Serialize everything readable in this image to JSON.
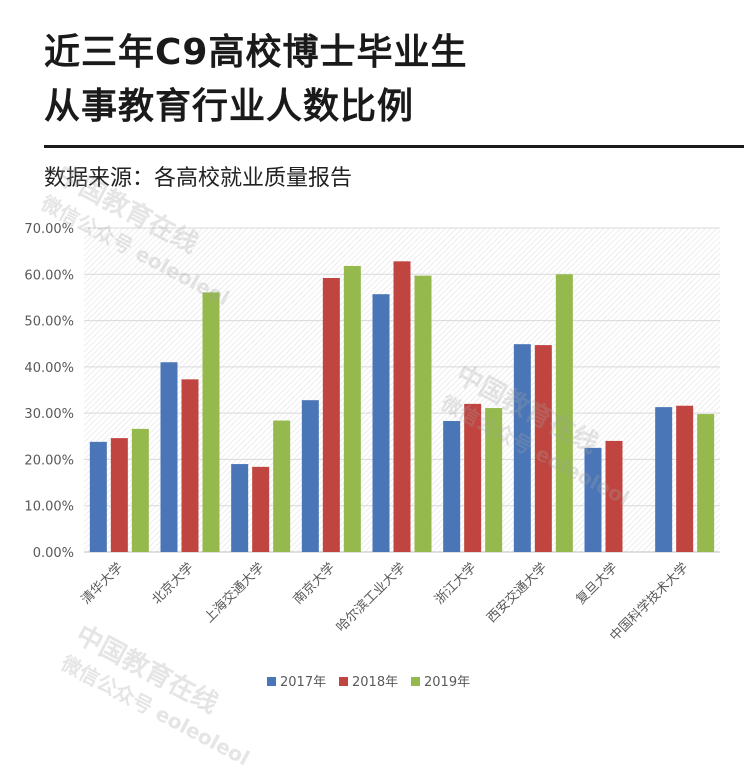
{
  "header": {
    "title_line1": "近三年C9高校博士毕业生",
    "title_line2": "从事教育行业人数比例",
    "source": "数据来源：各高校就业质量报告"
  },
  "watermark": {
    "line1": "中国教育在线",
    "line2": "微信公众号 eoleoleol"
  },
  "chart_data": {
    "type": "bar",
    "title": "",
    "xlabel": "",
    "ylabel": "",
    "ylim": [
      0,
      70
    ],
    "y_ticks": [
      "0.00%",
      "10.00%",
      "20.00%",
      "30.00%",
      "40.00%",
      "50.00%",
      "60.00%",
      "70.00%"
    ],
    "grid": true,
    "legend_position": "bottom",
    "categories": [
      "清华大学",
      "北京大学",
      "上海交通大学",
      "南京大学",
      "哈尔滨工业大学",
      "浙江大学",
      "西安交通大学",
      "复旦大学",
      "中国科学技术大学"
    ],
    "series": [
      {
        "name": "2017年",
        "color": "#4a76b8",
        "values": [
          23.8,
          41.0,
          19.0,
          32.8,
          55.7,
          28.3,
          44.9,
          22.5,
          31.3
        ]
      },
      {
        "name": "2018年",
        "color": "#c0443f",
        "values": [
          24.6,
          37.3,
          18.4,
          59.2,
          62.8,
          32.0,
          44.7,
          24.0,
          31.6
        ]
      },
      {
        "name": "2019年",
        "color": "#95b94d",
        "values": [
          26.6,
          56.1,
          28.4,
          61.8,
          59.7,
          31.1,
          60.0,
          null,
          29.8
        ]
      }
    ]
  }
}
